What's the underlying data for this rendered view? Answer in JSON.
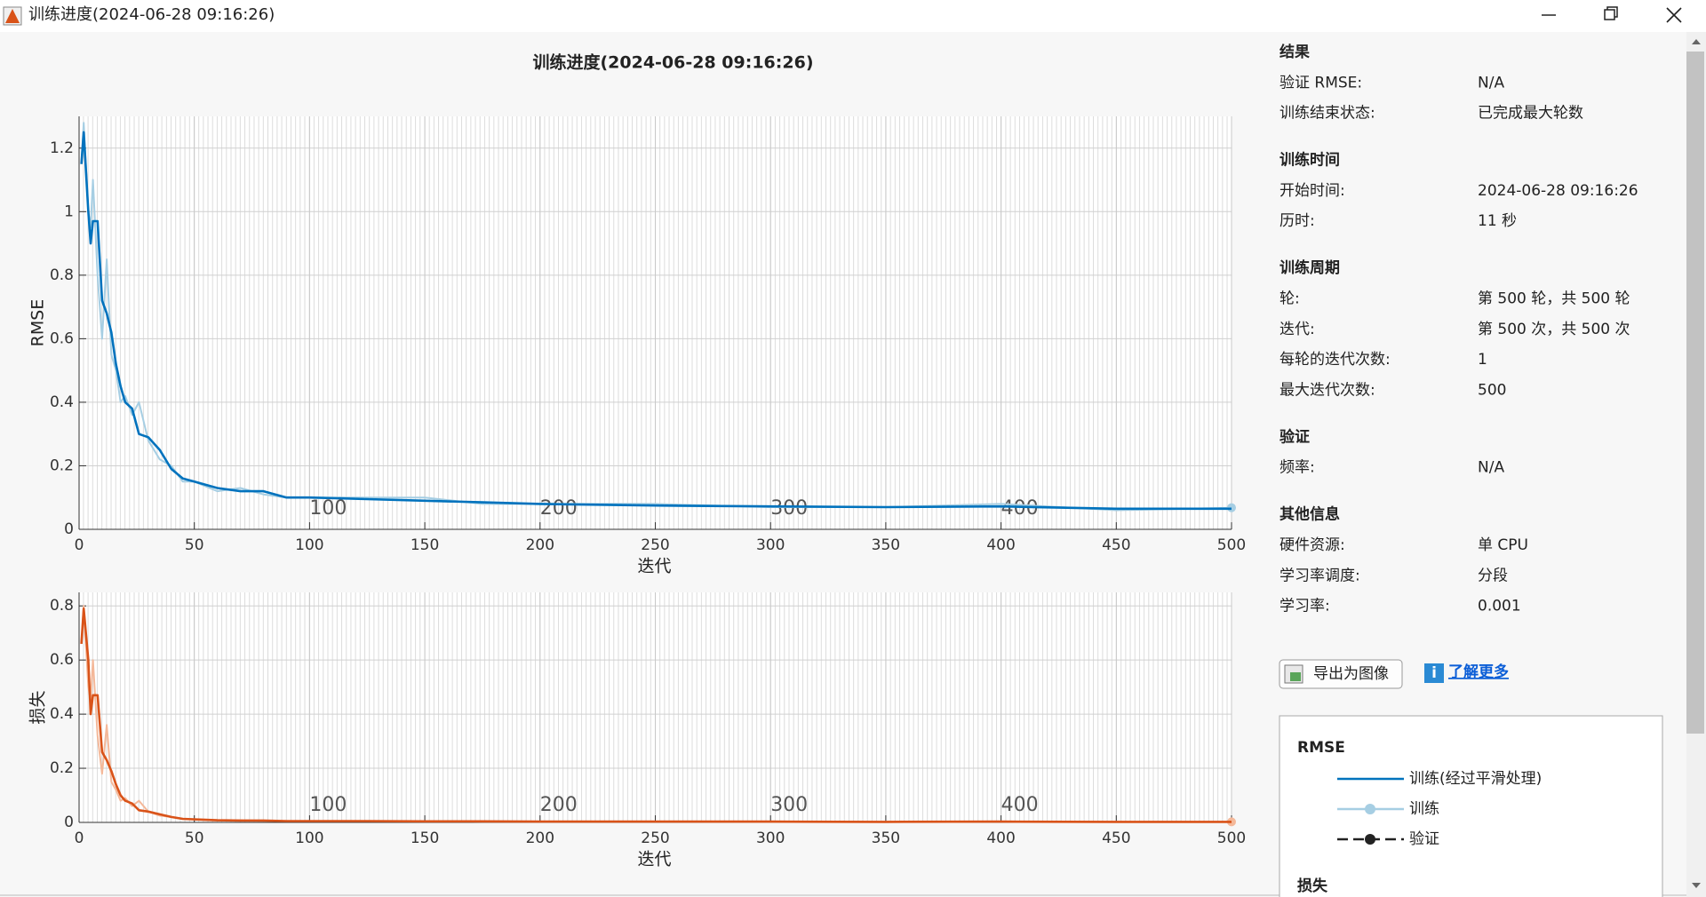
{
  "window": {
    "title": "训练进度(2024-06-28 09:16:26)"
  },
  "chart_data": [
    {
      "type": "line",
      "title": "训练进度(2024-06-28 09:16:26)",
      "ylabel": "RMSE",
      "xlabel": "迭代",
      "x": [
        1,
        2,
        4,
        5,
        6,
        8,
        10,
        12,
        14,
        16,
        18,
        20,
        23,
        26,
        30,
        35,
        40,
        45,
        50,
        60,
        70,
        80,
        90,
        100,
        125,
        150,
        175,
        200,
        250,
        300,
        350,
        400,
        450,
        500
      ],
      "series": [
        {
          "name": "训练(经过平滑处理)",
          "color": "#0072bd",
          "values": [
            1.15,
            1.25,
            1.0,
            0.9,
            0.97,
            0.97,
            0.72,
            0.68,
            0.62,
            0.52,
            0.45,
            0.4,
            0.38,
            0.3,
            0.29,
            0.25,
            0.19,
            0.16,
            0.15,
            0.13,
            0.12,
            0.12,
            0.1,
            0.1,
            0.095,
            0.09,
            0.085,
            0.08,
            0.075,
            0.072,
            0.07,
            0.072,
            0.065,
            0.065
          ]
        },
        {
          "name": "训练",
          "color": "#a6cee3",
          "values": [
            1.15,
            1.28,
            1.0,
            0.95,
            1.1,
            0.8,
            0.6,
            0.85,
            0.55,
            0.5,
            0.4,
            0.42,
            0.36,
            0.4,
            0.28,
            0.22,
            0.2,
            0.15,
            0.15,
            0.12,
            0.13,
            0.11,
            0.1,
            0.1,
            0.1,
            0.1,
            0.08,
            0.08,
            0.08,
            0.07,
            0.07,
            0.08,
            0.06,
            0.068
          ]
        }
      ],
      "xlim": [
        0,
        500
      ],
      "ylim": [
        0,
        1.3
      ],
      "xticks": [
        0,
        50,
        100,
        150,
        200,
        250,
        300,
        350,
        400,
        450,
        500
      ],
      "yticks": [
        0,
        0.2,
        0.4,
        0.6,
        0.8,
        1,
        1.2
      ],
      "epoch_markers": [
        100,
        200,
        300,
        400
      ],
      "grid": true
    },
    {
      "type": "line",
      "ylabel": "损失",
      "xlabel": "迭代",
      "x": [
        1,
        2,
        4,
        5,
        6,
        8,
        10,
        12,
        14,
        16,
        18,
        20,
        23,
        26,
        30,
        35,
        40,
        45,
        50,
        60,
        70,
        80,
        90,
        100,
        125,
        150,
        175,
        200,
        250,
        300,
        350,
        400,
        450,
        500
      ],
      "series": [
        {
          "name": "训练(经过平滑处理)",
          "color": "#d95319",
          "values": [
            0.66,
            0.79,
            0.6,
            0.4,
            0.47,
            0.47,
            0.26,
            0.23,
            0.19,
            0.14,
            0.1,
            0.08,
            0.07,
            0.045,
            0.04,
            0.03,
            0.02,
            0.013,
            0.011,
            0.008,
            0.007,
            0.007,
            0.005,
            0.005,
            0.005,
            0.004,
            0.004,
            0.003,
            0.003,
            0.003,
            0.002,
            0.003,
            0.002,
            0.002
          ]
        },
        {
          "name": "训练",
          "color": "#f4b899",
          "values": [
            0.66,
            0.8,
            0.5,
            0.45,
            0.6,
            0.32,
            0.18,
            0.36,
            0.15,
            0.12,
            0.08,
            0.09,
            0.06,
            0.08,
            0.04,
            0.025,
            0.02,
            0.012,
            0.011,
            0.007,
            0.008,
            0.006,
            0.005,
            0.005,
            0.005,
            0.005,
            0.003,
            0.003,
            0.003,
            0.002,
            0.002,
            0.003,
            0.002,
            0.002
          ]
        }
      ],
      "xlim": [
        0,
        500
      ],
      "ylim": [
        0,
        0.85
      ],
      "xticks": [
        0,
        50,
        100,
        150,
        200,
        250,
        300,
        350,
        400,
        450,
        500
      ],
      "yticks": [
        0,
        0.2,
        0.4,
        0.6,
        0.8
      ],
      "epoch_markers": [
        100,
        200,
        300,
        400
      ],
      "grid": true
    }
  ],
  "panel": {
    "sections": [
      {
        "heading": "结果",
        "rows": [
          [
            "验证 RMSE:",
            "N/A"
          ],
          [
            "训练结束状态:",
            "已完成最大轮数"
          ]
        ]
      },
      {
        "heading": "训练时间",
        "rows": [
          [
            "开始时间:",
            "2024-06-28 09:16:26"
          ],
          [
            "历时:",
            "11 秒"
          ]
        ]
      },
      {
        "heading": "训练周期",
        "rows": [
          [
            "轮:",
            "第 500 轮，共 500 轮"
          ],
          [
            "迭代:",
            "第 500 次，共 500 次"
          ],
          [
            "每轮的迭代次数:",
            "1"
          ],
          [
            "最大迭代次数:",
            "500"
          ]
        ]
      },
      {
        "heading": "验证",
        "rows": [
          [
            "频率:",
            "N/A"
          ]
        ]
      },
      {
        "heading": "其他信息",
        "rows": [
          [
            "硬件资源:",
            "单 CPU"
          ],
          [
            "学习率调度:",
            "分段"
          ],
          [
            "学习率:",
            "0.001"
          ]
        ]
      }
    ],
    "export_button": "导出为图像",
    "learn_more": "了解更多"
  },
  "legend": {
    "title": "RMSE",
    "validation": "验证",
    "loss_title": "损失"
  }
}
